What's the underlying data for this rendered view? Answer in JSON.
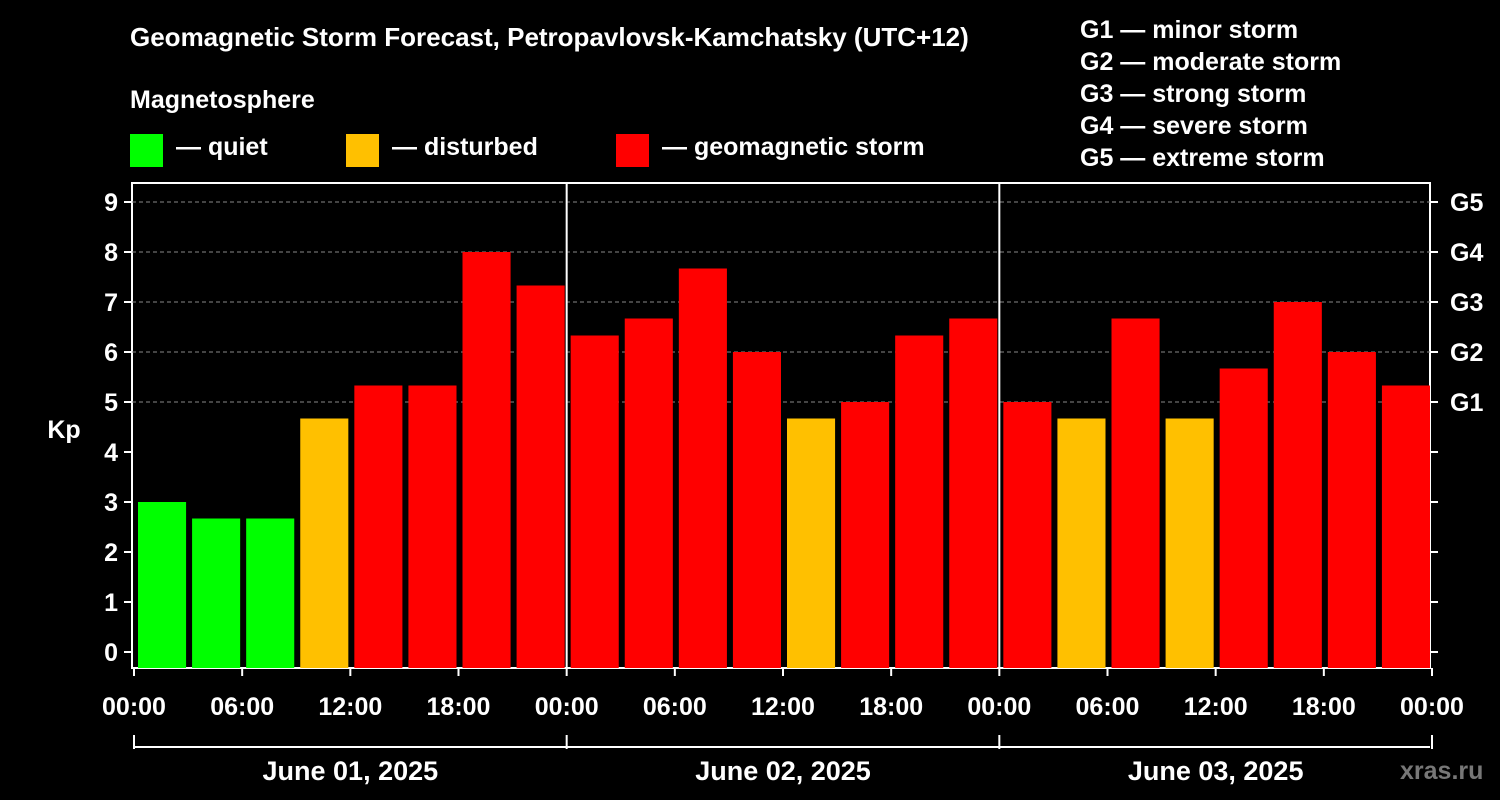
{
  "chart_data": {
    "type": "bar",
    "title": "Geomagnetic Storm Forecast, Petropavlovsk-Kamchatsky (UTC+12)",
    "ylabel": "Kp",
    "ylim": [
      0,
      9
    ],
    "yticks": [
      "0",
      "1",
      "2",
      "3",
      "4",
      "5",
      "6",
      "7",
      "8",
      "9"
    ],
    "right_ticks": [
      {
        "value": 5,
        "label": "G1"
      },
      {
        "value": 6,
        "label": "G2"
      },
      {
        "value": 7,
        "label": "G3"
      },
      {
        "value": 8,
        "label": "G4"
      },
      {
        "value": 9,
        "label": "G5"
      }
    ],
    "grid": "horizontal dashed",
    "values": [
      3.0,
      2.67,
      2.67,
      4.67,
      5.33,
      5.33,
      8.0,
      7.33,
      6.33,
      6.67,
      7.67,
      6.0,
      4.67,
      5.0,
      6.33,
      6.67,
      5.0,
      4.67,
      6.67,
      4.67,
      5.67,
      7.0,
      6.0,
      5.33
    ],
    "xtick_labels": [
      "00:00",
      "06:00",
      "12:00",
      "18:00",
      "00:00",
      "06:00",
      "12:00",
      "18:00",
      "00:00",
      "06:00",
      "12:00",
      "18:00",
      "00:00"
    ],
    "days": [
      "June 01, 2025",
      "June 02, 2025",
      "June 03, 2025"
    ],
    "colors": {
      "quiet": "#00ff00",
      "disturbed": "#ffc000",
      "storm": "#ff0000"
    }
  },
  "legend": {
    "title": "Magnetosphere",
    "items": [
      {
        "label": "— quiet",
        "color": "#00ff00"
      },
      {
        "label": "— disturbed",
        "color": "#ffc000"
      },
      {
        "label": "— geomagnetic storm",
        "color": "#ff0000"
      }
    ]
  },
  "storm_levels": [
    "G1 — minor storm",
    "G2 — moderate storm",
    "G3 — strong storm",
    "G4 — severe storm",
    "G5 — extreme storm"
  ],
  "brand": "xras.ru"
}
